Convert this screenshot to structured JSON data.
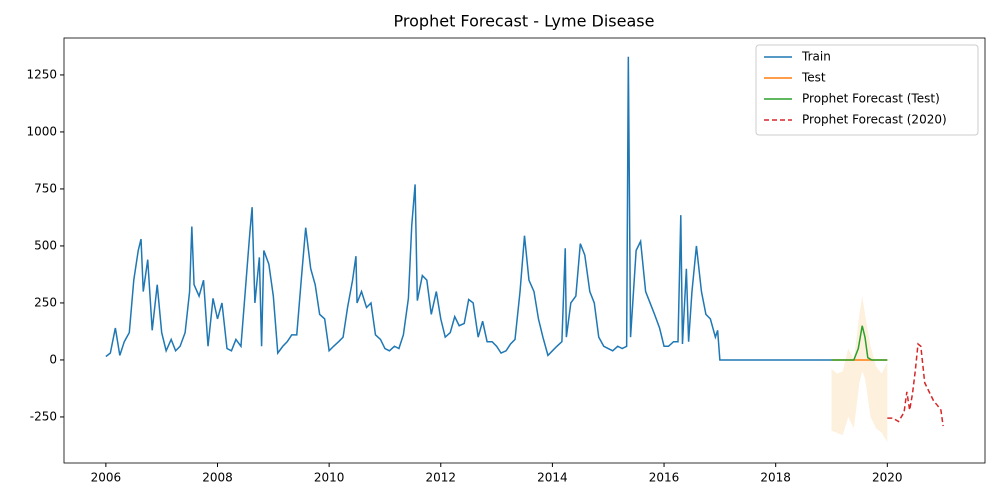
{
  "chart_data": {
    "type": "line",
    "title": "Prophet Forecast - Lyme Disease",
    "xlim": [
      2005.25,
      2021.75
    ],
    "ylim": [
      -452,
      1412
    ],
    "xticks": [
      2006,
      2008,
      2010,
      2012,
      2014,
      2016,
      2018,
      2020
    ],
    "yticks": [
      -250,
      0,
      250,
      500,
      750,
      1000,
      1250
    ],
    "legend": "upper right",
    "grid": false,
    "series": [
      {
        "name": "Train",
        "color": "#1f77b4",
        "dash": false,
        "x": [
          2006.0,
          2006.08,
          2006.17,
          2006.25,
          2006.33,
          2006.42,
          2006.5,
          2006.58,
          2006.63,
          2006.67,
          2006.75,
          2006.83,
          2006.92,
          2007.0,
          2007.08,
          2007.17,
          2007.25,
          2007.33,
          2007.42,
          2007.5,
          2007.54,
          2007.58,
          2007.67,
          2007.75,
          2007.83,
          2007.92,
          2008.0,
          2008.08,
          2008.17,
          2008.25,
          2008.33,
          2008.42,
          2008.5,
          2008.58,
          2008.62,
          2008.67,
          2008.75,
          2008.79,
          2008.83,
          2008.92,
          2009.0,
          2009.08,
          2009.17,
          2009.25,
          2009.33,
          2009.42,
          2009.5,
          2009.58,
          2009.67,
          2009.75,
          2009.83,
          2009.92,
          2010.0,
          2010.08,
          2010.17,
          2010.25,
          2010.33,
          2010.42,
          2010.48,
          2010.5,
          2010.58,
          2010.67,
          2010.75,
          2010.83,
          2010.92,
          2011.0,
          2011.08,
          2011.17,
          2011.25,
          2011.33,
          2011.42,
          2011.48,
          2011.54,
          2011.58,
          2011.67,
          2011.75,
          2011.83,
          2011.92,
          2012.0,
          2012.08,
          2012.17,
          2012.25,
          2012.33,
          2012.42,
          2012.5,
          2012.58,
          2012.67,
          2012.75,
          2012.83,
          2012.92,
          2013.0,
          2013.08,
          2013.17,
          2013.25,
          2013.33,
          2013.42,
          2013.5,
          2013.58,
          2013.67,
          2013.75,
          2013.83,
          2013.92,
          2014.0,
          2014.08,
          2014.17,
          2014.23,
          2014.25,
          2014.33,
          2014.42,
          2014.5,
          2014.58,
          2014.67,
          2014.75,
          2014.83,
          2014.92,
          2015.0,
          2015.08,
          2015.17,
          2015.25,
          2015.33,
          2015.36,
          2015.4,
          2015.5,
          2015.58,
          2015.67,
          2015.75,
          2015.83,
          2015.92,
          2016.0,
          2016.08,
          2016.17,
          2016.25,
          2016.3,
          2016.33,
          2016.4,
          2016.44,
          2016.5,
          2016.58,
          2016.67,
          2016.75,
          2016.83,
          2016.92,
          2016.96,
          2017.0,
          2019.0
        ],
        "values": [
          15,
          30,
          140,
          20,
          80,
          120,
          350,
          480,
          530,
          300,
          440,
          130,
          330,
          120,
          40,
          90,
          40,
          60,
          120,
          300,
          585,
          330,
          280,
          350,
          60,
          270,
          180,
          250,
          50,
          40,
          90,
          60,
          310,
          560,
          670,
          250,
          450,
          60,
          480,
          420,
          280,
          30,
          60,
          80,
          110,
          110,
          350,
          580,
          400,
          330,
          200,
          180,
          40,
          60,
          80,
          100,
          230,
          350,
          455,
          250,
          300,
          230,
          250,
          110,
          90,
          50,
          40,
          60,
          50,
          110,
          270,
          590,
          770,
          260,
          370,
          350,
          200,
          300,
          180,
          100,
          120,
          190,
          150,
          160,
          265,
          250,
          100,
          170,
          80,
          80,
          60,
          30,
          40,
          70,
          90,
          300,
          545,
          350,
          300,
          180,
          100,
          20,
          40,
          60,
          80,
          490,
          100,
          250,
          280,
          510,
          460,
          300,
          250,
          100,
          60,
          50,
          40,
          60,
          50,
          60,
          1330,
          100,
          480,
          520,
          300,
          250,
          200,
          140,
          60,
          60,
          80,
          80,
          635,
          70,
          400,
          80,
          300,
          500,
          300,
          200,
          180,
          100,
          130,
          0,
          0
        ]
      },
      {
        "name": "Test",
        "color": "#ff7f0e",
        "dash": false,
        "x": [
          2019.0,
          2020.0
        ],
        "values": [
          0,
          0
        ]
      },
      {
        "name": "Prophet Forecast (Test)",
        "color": "#2ca02c",
        "dash": false,
        "x": [
          2019.0,
          2019.4,
          2019.48,
          2019.55,
          2019.6,
          2019.65,
          2019.72,
          2020.0
        ],
        "values": [
          0,
          0,
          50,
          150,
          100,
          10,
          0,
          0
        ]
      },
      {
        "name": "Prophet Forecast (2020)",
        "color": "#d62728",
        "dash": true,
        "x": [
          2020.0,
          2020.1,
          2020.2,
          2020.3,
          2020.35,
          2020.4,
          2020.45,
          2020.5,
          2020.55,
          2020.6,
          2020.67,
          2020.75,
          2020.83,
          2020.9,
          2020.96,
          2021.0
        ],
        "values": [
          -255,
          -255,
          -270,
          -230,
          -140,
          -220,
          -150,
          -50,
          70,
          60,
          -100,
          -140,
          -180,
          -200,
          -220,
          -290
        ]
      }
    ],
    "interval": {
      "color": "#fdf0dc",
      "x": [
        2019.0,
        2019.1,
        2019.2,
        2019.3,
        2019.4,
        2019.5,
        2019.55,
        2019.6,
        2019.7,
        2019.8,
        2019.9,
        2020.0
      ],
      "upper": [
        -40,
        -60,
        -50,
        50,
        0,
        200,
        280,
        200,
        60,
        -30,
        -60,
        -10
      ],
      "lower": [
        -310,
        -320,
        -330,
        -250,
        -300,
        -100,
        -50,
        -80,
        -250,
        -300,
        -320,
        -360
      ]
    }
  }
}
